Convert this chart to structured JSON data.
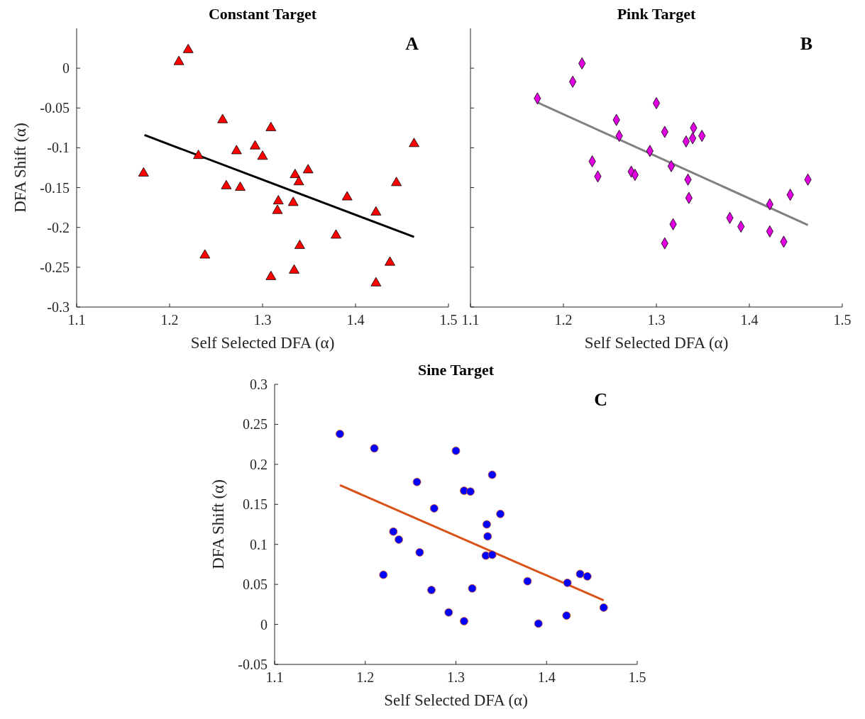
{
  "chart_data": [
    {
      "type": "scatter",
      "title": "Constant Target",
      "xlabel": "Self Selected DFA (α)",
      "ylabel": "DFA Shift (α)",
      "annotations": [
        "A"
      ],
      "xlim": [
        1.1,
        1.5
      ],
      "xticks": [
        1.1,
        1.2,
        1.3,
        1.4,
        1.5
      ],
      "ylim": [
        -0.3,
        0.05
      ],
      "yticks": [
        -0.3,
        -0.25,
        -0.2,
        -0.15,
        -0.1,
        -0.05,
        0
      ],
      "series": [
        {
          "marker": "triangle",
          "color": "#ff0000",
          "x": [
            1.172,
            1.21,
            1.22,
            1.231,
            1.238,
            1.257,
            1.261,
            1.272,
            1.276,
            1.292,
            1.3,
            1.309,
            1.309,
            1.317,
            1.316,
            1.333,
            1.334,
            1.335,
            1.339,
            1.349,
            1.34,
            1.379,
            1.391,
            1.422,
            1.422,
            1.437,
            1.444,
            1.463
          ],
          "values": [
            -0.132,
            0.008,
            0.023,
            -0.11,
            -0.235,
            -0.065,
            -0.148,
            -0.104,
            -0.15,
            -0.098,
            -0.111,
            -0.075,
            -0.262,
            -0.167,
            -0.179,
            -0.169,
            -0.254,
            -0.134,
            -0.143,
            -0.128,
            -0.223,
            -0.21,
            -0.162,
            -0.181,
            -0.27,
            -0.244,
            -0.144,
            -0.095
          ]
        },
        {
          "type": "line",
          "marker": "none",
          "color": "#000000",
          "x": [
            1.173,
            1.463
          ],
          "values": [
            -0.084,
            -0.212
          ]
        }
      ]
    },
    {
      "type": "scatter",
      "title": "Pink Target",
      "xlabel": "Self Selected DFA (α)",
      "annotations": [
        "B"
      ],
      "xlim": [
        1.1,
        1.5
      ],
      "xticks": [
        1.1,
        1.2,
        1.3,
        1.4,
        1.5
      ],
      "ylim": [
        -0.3,
        0.05
      ],
      "yticks": [
        -0.3,
        -0.25,
        -0.2,
        -0.15,
        -0.1,
        -0.05,
        0
      ],
      "tick_labels": "x",
      "series": [
        {
          "marker": "diamond",
          "color": "#e000e0",
          "x": [
            1.172,
            1.21,
            1.22,
            1.231,
            1.237,
            1.257,
            1.26,
            1.273,
            1.277,
            1.293,
            1.3,
            1.309,
            1.309,
            1.316,
            1.318,
            1.332,
            1.334,
            1.335,
            1.34,
            1.339,
            1.349,
            1.379,
            1.391,
            1.422,
            1.422,
            1.437,
            1.444,
            1.463
          ],
          "values": [
            -0.038,
            -0.017,
            0.006,
            -0.117,
            -0.136,
            -0.065,
            -0.085,
            -0.13,
            -0.134,
            -0.104,
            -0.044,
            -0.08,
            -0.22,
            -0.123,
            -0.196,
            -0.092,
            -0.14,
            -0.163,
            -0.075,
            -0.088,
            -0.085,
            -0.188,
            -0.199,
            -0.171,
            -0.205,
            -0.218,
            -0.159,
            -0.14
          ]
        },
        {
          "type": "line",
          "marker": "none",
          "color": "#808080",
          "x": [
            1.172,
            1.463
          ],
          "values": [
            -0.043,
            -0.197
          ]
        }
      ]
    },
    {
      "type": "scatter",
      "title": "Sine Target",
      "xlabel": "Self Selected DFA (α)",
      "ylabel": "DFA Shift (α)",
      "annotations": [
        "C"
      ],
      "xlim": [
        1.1,
        1.5
      ],
      "xticks": [
        1.1,
        1.2,
        1.3,
        1.4,
        1.5
      ],
      "ylim": [
        -0.05,
        0.3
      ],
      "yticks": [
        -0.05,
        0,
        0.05,
        0.1,
        0.15,
        0.2,
        0.25,
        0.3
      ],
      "series": [
        {
          "marker": "circle",
          "color": "#0000ff",
          "x": [
            1.172,
            1.21,
            1.3,
            1.34,
            1.257,
            1.309,
            1.316,
            1.276,
            1.349,
            1.334,
            1.335,
            1.231,
            1.237,
            1.26,
            1.333,
            1.34,
            1.22,
            1.379,
            1.423,
            1.437,
            1.445,
            1.273,
            1.318,
            1.292,
            1.309,
            1.391,
            1.422,
            1.463
          ],
          "values": [
            0.238,
            0.22,
            0.217,
            0.187,
            0.178,
            0.167,
            0.166,
            0.145,
            0.138,
            0.125,
            0.11,
            0.116,
            0.106,
            0.09,
            0.086,
            0.087,
            0.062,
            0.054,
            0.052,
            0.063,
            0.06,
            0.043,
            0.045,
            0.015,
            0.004,
            0.001,
            0.011,
            0.021
          ]
        },
        {
          "type": "line",
          "marker": "none",
          "color": "#d95319",
          "x": [
            1.172,
            1.463
          ],
          "values": [
            0.174,
            0.03
          ]
        }
      ]
    }
  ]
}
